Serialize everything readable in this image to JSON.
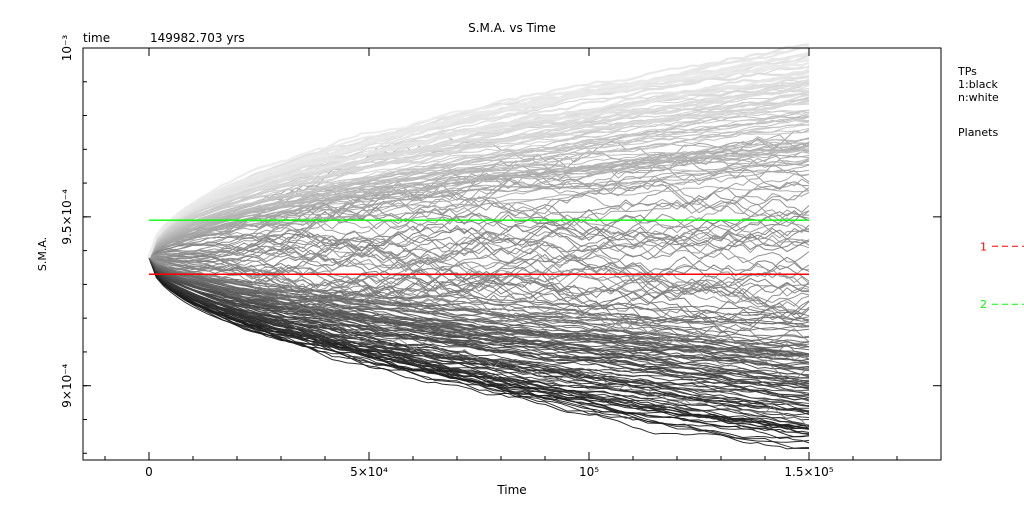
{
  "chart_data": {
    "type": "line",
    "title": "S.M.A. vs Time",
    "subtitle_label": "time",
    "subtitle_value": "149982.703 yrs",
    "xlabel": "Time",
    "ylabel": "S.M.A.",
    "xlim": [
      -15000,
      180000
    ],
    "ylim": [
      0.000878,
      0.001
    ],
    "x_ticks": [
      {
        "value": 0,
        "label": "0"
      },
      {
        "value": 50000,
        "label": "5×10⁴"
      },
      {
        "value": 100000,
        "label": "10⁵"
      },
      {
        "value": 150000,
        "label": "1.5×10⁵"
      }
    ],
    "y_ticks": [
      {
        "value": 0.0009,
        "label": "9×10⁻⁴"
      },
      {
        "value": 0.00095,
        "label": "9.5×10⁻⁴"
      },
      {
        "value": 0.001,
        "label": "10⁻³"
      }
    ],
    "legend": {
      "tp_title": "TPs",
      "tp_first": "1:black",
      "tp_last": "n:white",
      "planets_title": "Planets"
    },
    "planets": [
      {
        "name": "1",
        "sma": 0.000933,
        "color": "#ff0000"
      },
      {
        "name": "2",
        "sma": 0.000949,
        "color": "#00ff00"
      }
    ],
    "test_particles": {
      "time_range": [
        0,
        150000
      ],
      "initial_sma": 0.000938,
      "upper_envelope_final": 0.001,
      "lower_envelope_final": 0.000883,
      "count_shown": "many"
    }
  }
}
